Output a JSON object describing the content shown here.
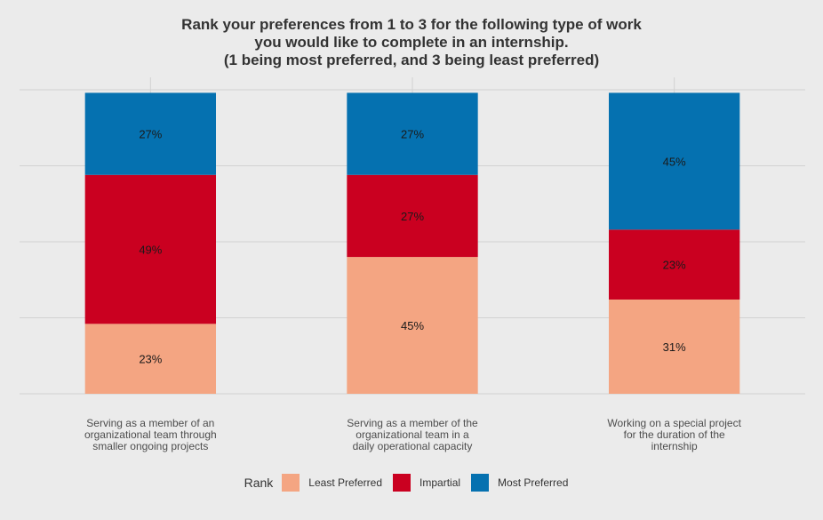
{
  "chart_data": {
    "type": "bar",
    "stacked": true,
    "title_lines": [
      "Rank your preferences from 1 to 3 for the following type of work",
      "you would like to complete in an internship.",
      "(1 being most preferred, and 3 being least preferred)"
    ],
    "categories": [
      [
        "Serving as a member of an",
        "organizational team through",
        "smaller ongoing projects"
      ],
      [
        "Serving as a member of the",
        "organizational team in a",
        "daily operational capacity"
      ],
      [
        "Working on a special project",
        "for the duration of the",
        "internship"
      ]
    ],
    "series": [
      {
        "name": "Least Preferred",
        "color": "#f4a582",
        "values": [
          23,
          45,
          31
        ],
        "labels": [
          "23%",
          "45%",
          "31%"
        ]
      },
      {
        "name": "Impartial",
        "color": "#ca0020",
        "values": [
          49,
          27,
          23
        ],
        "labels": [
          "49%",
          "27%",
          "23%"
        ]
      },
      {
        "name": "Most Preferred",
        "color": "#0571b0",
        "values": [
          27,
          27,
          45
        ],
        "labels": [
          "27%",
          "27%",
          "45%"
        ]
      }
    ],
    "legend_title": "Rank",
    "legend_position": "bottom",
    "ylim": [
      0,
      100
    ],
    "grid": true,
    "y_tick_labels_shown": false
  }
}
